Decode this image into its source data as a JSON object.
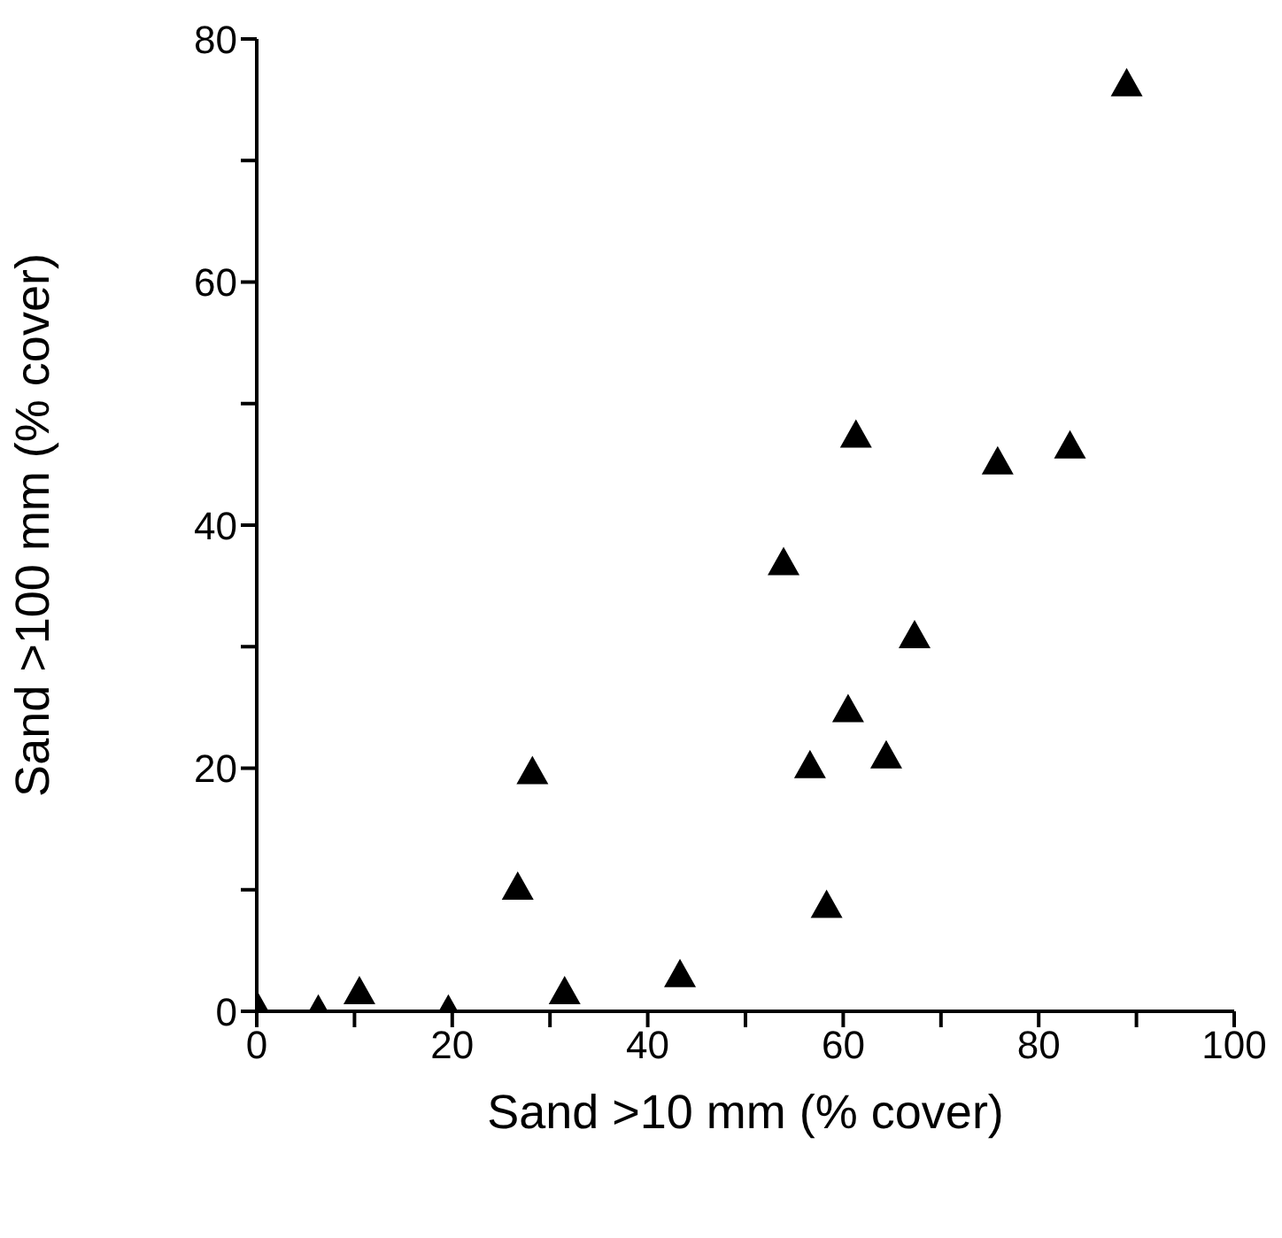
{
  "chart_data": {
    "type": "scatter",
    "xlabel": "Sand >10 mm (% cover)",
    "ylabel": "Sand >100 mm (% cover)",
    "x": [
      0.1,
      6.3,
      10.5,
      19.6,
      26.7,
      28.2,
      31.5,
      43.3,
      53.9,
      56.6,
      58.3,
      60.5,
      61.3,
      64.4,
      67.3,
      75.8,
      83.2,
      89.0
    ],
    "series": [
      {
        "color": "#000000",
        "values": [
          0.3,
          0.1,
          1.6,
          0.1,
          10.2,
          19.7,
          1.6,
          3.0,
          36.9,
          20.2,
          8.7,
          24.8,
          47.4,
          21.0,
          30.9,
          45.2,
          46.5,
          76.3
        ]
      }
    ],
    "xlim": [
      0,
      100
    ],
    "xticks": [
      0,
      {
        "value": 10,
        "label": null
      },
      20,
      {
        "value": 30,
        "label": null
      },
      40,
      {
        "value": 50,
        "label": null
      },
      60,
      {
        "value": 70,
        "label": null
      },
      80,
      {
        "value": 90,
        "label": null
      },
      100
    ],
    "ylim": [
      0,
      80
    ],
    "yticks": [
      0,
      {
        "value": 10,
        "label": null
      },
      20,
      {
        "value": 30,
        "label": null
      },
      40,
      {
        "value": 50,
        "label": null
      },
      60,
      {
        "value": 70,
        "label": null
      },
      80
    ],
    "grid": false,
    "marker": "triangle"
  }
}
